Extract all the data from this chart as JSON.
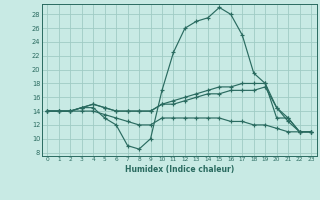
{
  "xlabel": "Humidex (Indice chaleur)",
  "ylabel": "",
  "xlim": [
    -0.5,
    23.5
  ],
  "ylim": [
    7.5,
    29.5
  ],
  "yticks": [
    8,
    10,
    12,
    14,
    16,
    18,
    20,
    22,
    24,
    26,
    28
  ],
  "xticks": [
    0,
    1,
    2,
    3,
    4,
    5,
    6,
    7,
    8,
    9,
    10,
    11,
    12,
    13,
    14,
    15,
    16,
    17,
    18,
    19,
    20,
    21,
    22,
    23
  ],
  "bg_color": "#c8eae4",
  "grid_color": "#a0ccc4",
  "line_color": "#2a6b60",
  "lines": [
    {
      "x": [
        0,
        1,
        2,
        3,
        4,
        5,
        6,
        7,
        8,
        9,
        10,
        11,
        12,
        13,
        14,
        15,
        16,
        17,
        18,
        19,
        20,
        21,
        22,
        23
      ],
      "y": [
        14,
        14,
        14,
        14.5,
        14.5,
        13,
        12,
        9,
        8.5,
        10,
        17,
        22.5,
        26,
        27,
        27.5,
        29,
        28,
        25,
        19.5,
        18,
        13,
        13,
        11,
        11
      ]
    },
    {
      "x": [
        0,
        1,
        2,
        3,
        4,
        5,
        6,
        7,
        8,
        9,
        10,
        11,
        12,
        13,
        14,
        15,
        16,
        17,
        18,
        19,
        20,
        21,
        22,
        23
      ],
      "y": [
        14,
        14,
        14,
        14.5,
        15,
        14.5,
        14,
        14,
        14,
        14,
        15,
        15.5,
        16,
        16.5,
        17,
        17.5,
        17.5,
        18,
        18,
        18,
        14.5,
        13,
        11,
        11
      ]
    },
    {
      "x": [
        0,
        1,
        2,
        3,
        4,
        5,
        6,
        7,
        8,
        9,
        10,
        11,
        12,
        13,
        14,
        15,
        16,
        17,
        18,
        19,
        20,
        21,
        22,
        23
      ],
      "y": [
        14,
        14,
        14,
        14.5,
        15,
        14.5,
        14,
        14,
        14,
        14,
        15,
        15,
        15.5,
        16,
        16.5,
        16.5,
        17,
        17,
        17,
        17.5,
        14.5,
        12.5,
        11,
        11
      ]
    },
    {
      "x": [
        0,
        1,
        2,
        3,
        4,
        5,
        6,
        7,
        8,
        9,
        10,
        11,
        12,
        13,
        14,
        15,
        16,
        17,
        18,
        19,
        20,
        21,
        22,
        23
      ],
      "y": [
        14,
        14,
        14,
        14,
        14,
        13.5,
        13,
        12.5,
        12,
        12,
        13,
        13,
        13,
        13,
        13,
        13,
        12.5,
        12.5,
        12,
        12,
        11.5,
        11,
        11,
        11
      ]
    }
  ]
}
